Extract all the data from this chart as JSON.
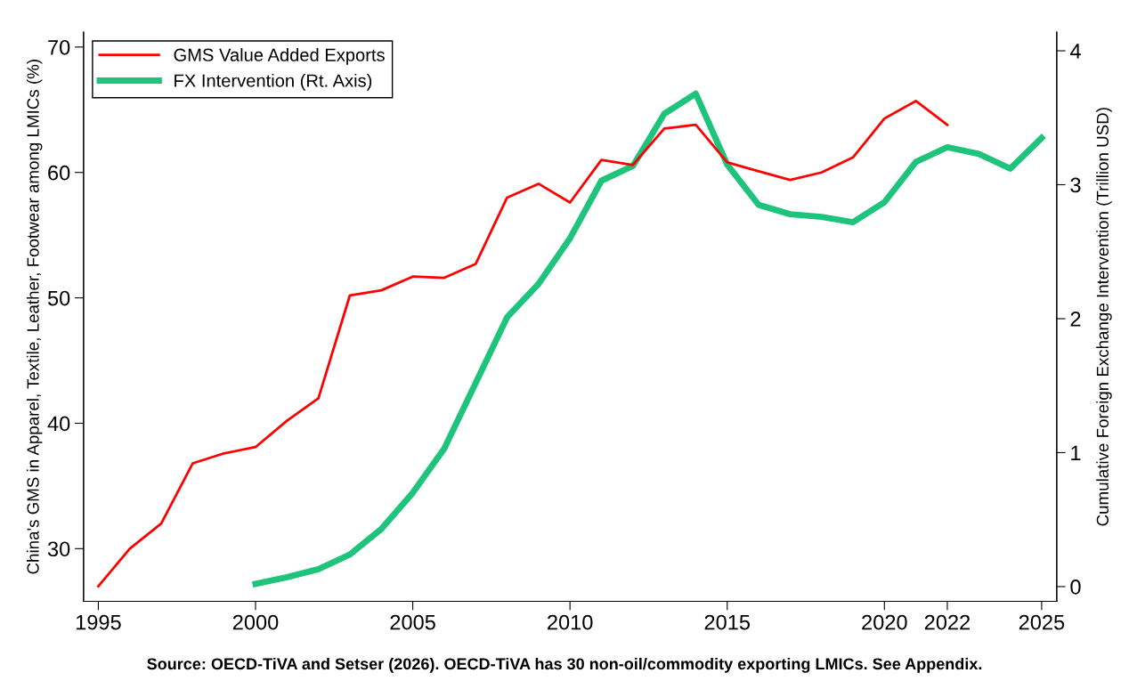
{
  "chart_data": {
    "type": "line",
    "ylabel": "China's GMS in Apparel, Textile, Leather, Footwear among LMICs (%)",
    "y2label": "Cumulative Foreign Exchange Intervention (Trillion USD)",
    "annotations": [
      "Source: OECD-TiVA and Setser (2026). OECD-TiVA has 30 non-oil/commodity exporting LMICs. See Appendix."
    ],
    "xlim": [
      1994.53,
      2025.48
    ],
    "xticks": [
      1995,
      2000,
      2005,
      2010,
      2015,
      2020,
      2022,
      2025
    ],
    "ylim": [
      25.8,
      71.2
    ],
    "yticks": [
      30,
      40,
      50,
      60,
      70
    ],
    "y2lim": [
      -0.11,
      4.14
    ],
    "y2ticks": [
      0,
      1,
      2,
      3,
      4
    ],
    "grid": false,
    "legend": "top left",
    "marker": "none",
    "line_style": "solid",
    "series": [
      {
        "name": "GMS Value Added Exports",
        "color": "#ff0000",
        "x": [
          1995,
          1996,
          1997,
          1998,
          1999,
          2000,
          2001,
          2002,
          2003,
          2004,
          2005,
          2006,
          2007,
          2008,
          2009,
          2010,
          2011,
          2012,
          2013,
          2014,
          2015,
          2016,
          2017,
          2018,
          2019,
          2020,
          2021,
          2022
        ],
        "values": [
          27.0,
          30.0,
          32.0,
          36.8,
          37.6,
          38.1,
          40.2,
          42.0,
          50.2,
          50.6,
          51.7,
          51.6,
          52.7,
          58.0,
          59.1,
          57.6,
          61.0,
          60.6,
          63.5,
          63.8,
          60.8,
          60.1,
          59.4,
          60.0,
          61.2,
          64.3,
          65.7,
          63.8
        ]
      },
      {
        "name": "FX Intervention (Rt. Axis)",
        "color": "#1ec47c",
        "axis": "y2",
        "x": [
          2000,
          2001,
          2002,
          2003,
          2004,
          2005,
          2006,
          2007,
          2008,
          2009,
          2010,
          2011,
          2012,
          2013,
          2014,
          2015,
          2016,
          2017,
          2018,
          2019,
          2020,
          2021,
          2022,
          2023,
          2024,
          2025
        ],
        "values": [
          0.02,
          0.07,
          0.13,
          0.24,
          0.43,
          0.7,
          1.03,
          1.52,
          2.01,
          2.26,
          2.6,
          3.03,
          3.14,
          3.53,
          3.68,
          3.15,
          2.85,
          2.78,
          2.76,
          2.72,
          2.87,
          3.17,
          3.28,
          3.23,
          3.12,
          3.35
        ]
      }
    ]
  }
}
